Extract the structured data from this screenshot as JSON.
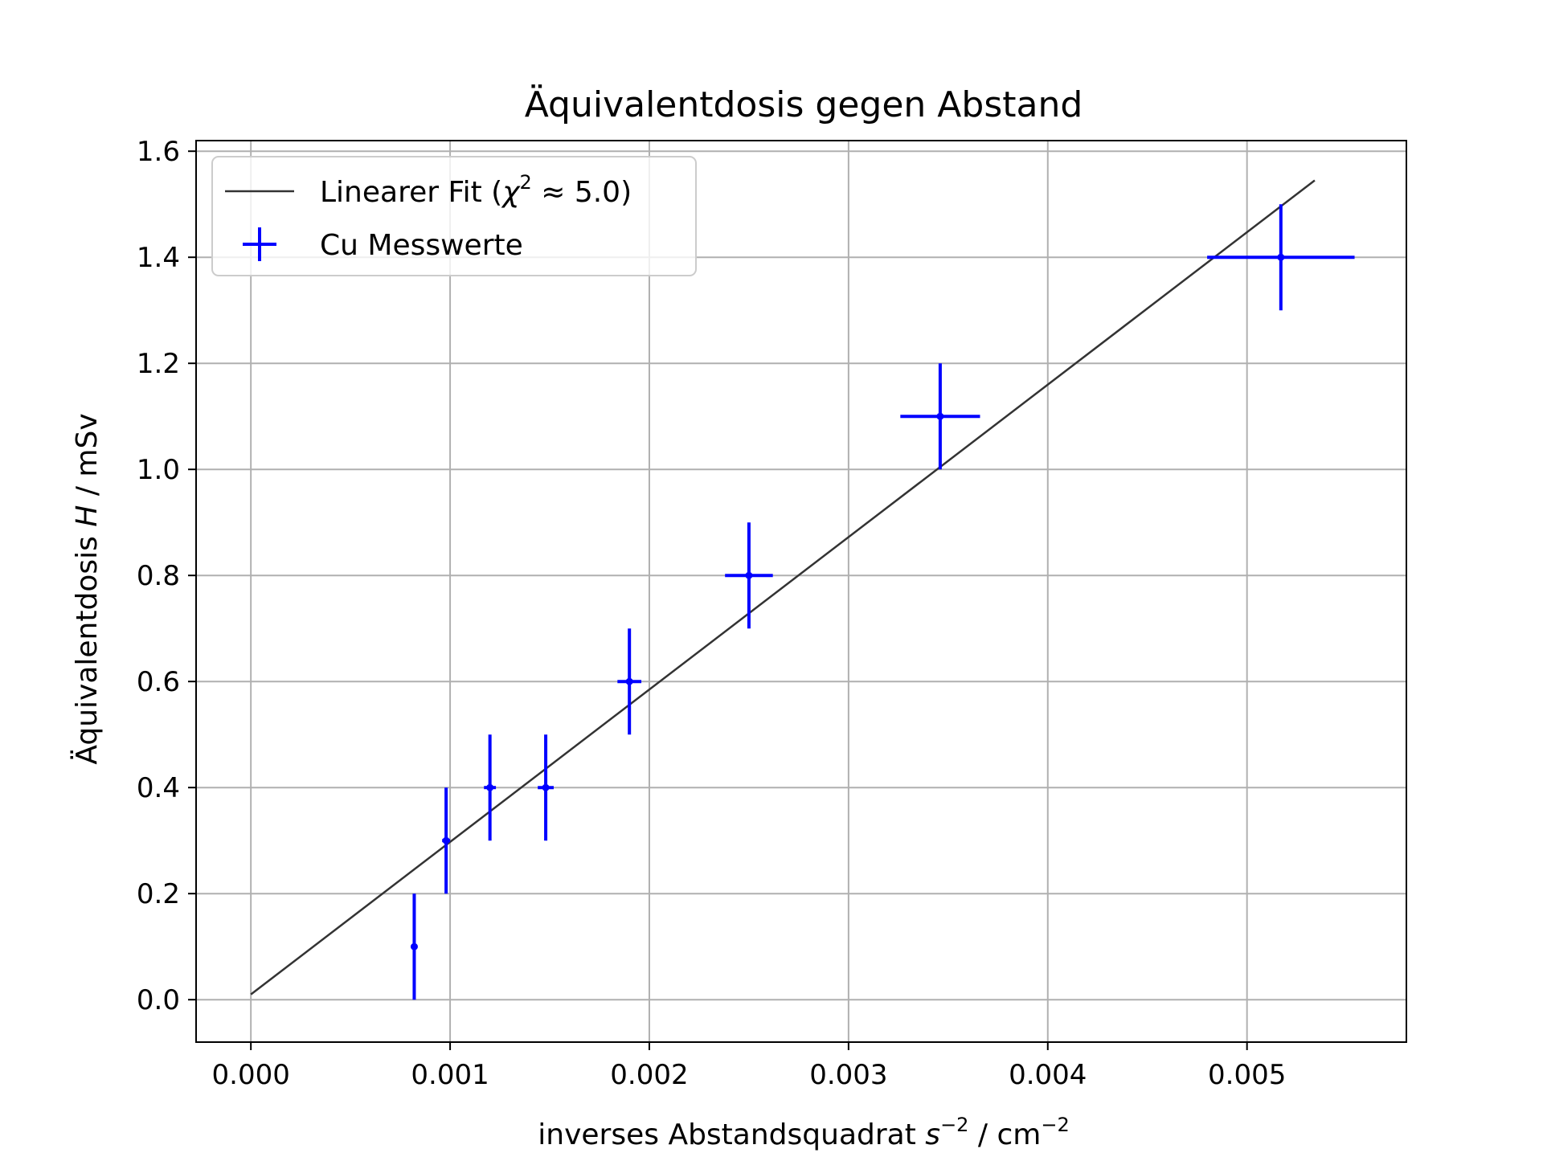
{
  "chart_data": {
    "type": "scatter",
    "title": "Äquivalentdosis gegen Abstand",
    "xlabel": "inverses Abstandsquadrat",
    "xlabel_var": "s",
    "xlabel_var_exp": "−2",
    "xlabel_unit": " / cm",
    "xlabel_unit_exp": "−2",
    "ylabel_prefix": "Äquivalentdosis ",
    "ylabel_var": "H",
    "ylabel_suffix": " / mSv",
    "xlim": [
      -0.000275,
      0.0058
    ],
    "ylim": [
      -0.08,
      1.62
    ],
    "xticks": [
      0.0,
      0.001,
      0.002,
      0.003,
      0.004,
      0.005
    ],
    "xtick_labels": [
      "0.000",
      "0.001",
      "0.002",
      "0.003",
      "0.004",
      "0.005"
    ],
    "yticks": [
      0.0,
      0.2,
      0.4,
      0.6,
      0.8,
      1.0,
      1.2,
      1.4,
      1.6
    ],
    "ytick_labels": [
      "0.0",
      "0.2",
      "0.4",
      "0.6",
      "0.8",
      "1.0",
      "1.2",
      "1.4",
      "1.6"
    ],
    "grid": true,
    "legend_position": "upper-left",
    "series": [
      {
        "name": "Linearer Fit (χ² ≈ 5.0)",
        "legend_prefix": "Linearer Fit (",
        "legend_chi": "χ",
        "legend_chi_exp": "2",
        "legend_suffix": " ≈ 5.0)",
        "kind": "line",
        "color": "#333333",
        "x": [
          0.0,
          0.00534
        ],
        "y": [
          0.01,
          1.545
        ]
      },
      {
        "name": "Cu Messwerte",
        "kind": "errorbar",
        "color": "#0000ff",
        "x": [
          0.00082,
          0.00098,
          0.0012,
          0.00148,
          0.0019,
          0.0025,
          0.00346,
          0.00517
        ],
        "y": [
          0.1,
          0.3,
          0.4,
          0.4,
          0.6,
          0.8,
          1.1,
          1.4
        ],
        "xerr": [
          1e-05,
          2e-05,
          3e-05,
          4e-05,
          6e-05,
          0.00012,
          0.0002,
          0.00037
        ],
        "yerr": [
          0.1,
          0.1,
          0.1,
          0.1,
          0.1,
          0.1,
          0.1,
          0.1
        ]
      }
    ]
  }
}
